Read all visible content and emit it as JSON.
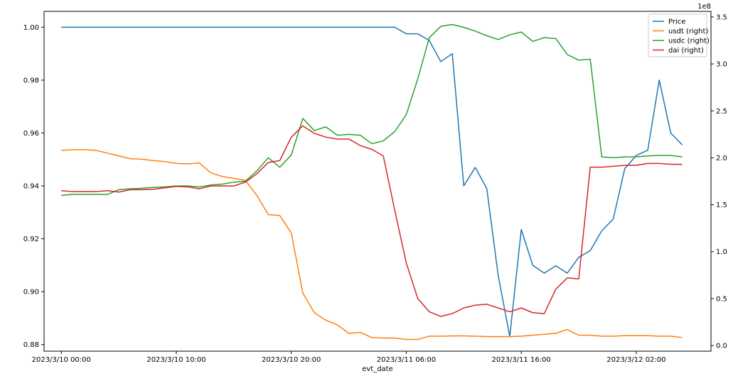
{
  "chart_data": {
    "type": "line",
    "xlabel": "evt_date",
    "x_tick_labels": [
      "2023/3/10 00:00",
      "2023/3/10 10:00",
      "2023/3/10 20:00",
      "2023/3/11 06:00",
      "2023/3/11 16:00",
      "2023/3/12 02:00"
    ],
    "x_tick_values": [
      0,
      10,
      20,
      30,
      40,
      50
    ],
    "xlim": [
      -1.5,
      56.5
    ],
    "left_axis": {
      "ylim": [
        0.8775,
        1.006
      ],
      "tick_values": [
        0.88,
        0.9,
        0.92,
        0.94,
        0.96,
        0.98,
        1.0
      ],
      "tick_labels": [
        "0.88",
        "0.90",
        "0.92",
        "0.94",
        "0.96",
        "0.98",
        "1.00"
      ]
    },
    "right_axis": {
      "ylim": [
        -0.06,
        3.56
      ],
      "offset_label": "1e8",
      "tick_values": [
        0.0,
        0.5,
        1.0,
        1.5,
        2.0,
        2.5,
        3.0,
        3.5
      ],
      "tick_labels": [
        "0.0",
        "0.5",
        "1.0",
        "1.5",
        "2.0",
        "2.5",
        "3.0",
        "3.5"
      ]
    },
    "legend": {
      "position": "top-right",
      "entries": [
        "Price",
        "usdt (right)",
        "usdc (right)",
        "dai (right)"
      ]
    },
    "grid": false,
    "series": [
      {
        "name": "Price",
        "axis": "left",
        "color": "#1f77b4",
        "x": [
          0,
          1,
          2,
          3,
          4,
          5,
          6,
          7,
          8,
          9,
          10,
          11,
          12,
          13,
          14,
          15,
          16,
          17,
          18,
          19,
          20,
          21,
          22,
          23,
          24,
          25,
          26,
          27,
          28,
          29,
          30,
          31,
          32,
          33,
          34,
          35,
          36,
          37,
          38,
          39,
          40,
          41,
          42,
          43,
          44,
          45,
          46,
          47,
          48,
          49,
          50,
          51,
          52,
          53,
          54,
          55
        ],
        "values": [
          1.0,
          1.0,
          1.0,
          1.0,
          1.0,
          1.0,
          1.0,
          1.0,
          1.0,
          1.0,
          1.0,
          1.0,
          1.0,
          1.0,
          1.0,
          1.0,
          1.0,
          1.0,
          1.0,
          1.0,
          1.0,
          1.0,
          1.0,
          1.0,
          1.0,
          1.0,
          1.0,
          1.0,
          1.0,
          1.0,
          0.9975,
          0.9975,
          0.995,
          0.987,
          0.99,
          0.94,
          0.947,
          0.939,
          0.906,
          0.883,
          0.9235,
          0.91,
          0.907,
          0.9098,
          0.907,
          0.913,
          0.9155,
          0.923,
          0.9275,
          0.9465,
          0.9515,
          0.9535,
          0.98,
          0.96,
          0.9555,
          null
        ]
      },
      {
        "name": "usdt (right)",
        "axis": "right",
        "color": "#ff7f0e",
        "x": [
          0,
          1,
          2,
          3,
          4,
          5,
          6,
          7,
          8,
          9,
          10,
          11,
          12,
          13,
          14,
          15,
          16,
          17,
          18,
          19,
          20,
          21,
          22,
          23,
          24,
          25,
          26,
          27,
          28,
          29,
          30,
          31,
          32,
          33,
          34,
          35,
          36,
          37,
          38,
          39,
          40,
          41,
          42,
          43,
          44,
          45,
          46,
          47,
          48,
          49,
          50,
          51,
          52,
          53,
          54,
          55
        ],
        "values": [
          2.08,
          2.085,
          2.085,
          2.08,
          2.05,
          2.02,
          1.99,
          1.985,
          1.97,
          1.96,
          1.94,
          1.935,
          1.945,
          1.84,
          1.8,
          1.78,
          1.76,
          1.6,
          1.395,
          1.385,
          1.2,
          0.56,
          0.35,
          0.27,
          0.22,
          0.13,
          0.14,
          0.085,
          0.08,
          0.08,
          0.065,
          0.065,
          0.1,
          0.1,
          0.102,
          0.102,
          0.1,
          0.095,
          0.095,
          0.095,
          0.1,
          0.11,
          0.12,
          0.13,
          0.17,
          0.11,
          0.11,
          0.1,
          0.1,
          0.105,
          0.105,
          0.105,
          0.1,
          0.1,
          0.085,
          null
        ]
      },
      {
        "name": "usdc (right)",
        "axis": "right",
        "color": "#2ca02c",
        "x": [
          0,
          1,
          2,
          3,
          4,
          5,
          6,
          7,
          8,
          9,
          10,
          11,
          12,
          13,
          14,
          15,
          16,
          17,
          18,
          19,
          20,
          21,
          22,
          23,
          24,
          25,
          26,
          27,
          28,
          29,
          30,
          31,
          32,
          33,
          34,
          35,
          36,
          37,
          38,
          39,
          40,
          41,
          42,
          43,
          44,
          45,
          46,
          47,
          48,
          49,
          50,
          51,
          52,
          53,
          54,
          55
        ],
        "values": [
          1.6,
          1.61,
          1.61,
          1.61,
          1.61,
          1.66,
          1.67,
          1.675,
          1.685,
          1.69,
          1.7,
          1.7,
          1.69,
          1.71,
          1.72,
          1.74,
          1.75,
          1.86,
          2.0,
          1.9,
          2.03,
          2.42,
          2.29,
          2.33,
          2.24,
          2.25,
          2.24,
          2.15,
          2.18,
          2.28,
          2.46,
          2.84,
          3.28,
          3.4,
          3.42,
          3.39,
          3.35,
          3.3,
          3.26,
          3.31,
          3.34,
          3.24,
          3.28,
          3.27,
          3.1,
          3.04,
          3.05,
          2.01,
          2.0,
          2.01,
          2.01,
          2.02,
          2.025,
          2.025,
          2.01,
          null
        ]
      },
      {
        "name": "dai (right)",
        "axis": "right",
        "color": "#d62728",
        "x": [
          0,
          1,
          2,
          3,
          4,
          5,
          6,
          7,
          8,
          9,
          10,
          11,
          12,
          13,
          14,
          15,
          16,
          17,
          18,
          19,
          20,
          21,
          22,
          23,
          24,
          25,
          26,
          27,
          28,
          29,
          30,
          31,
          32,
          33,
          34,
          35,
          36,
          37,
          38,
          39,
          40,
          41,
          42,
          43,
          44,
          45,
          46,
          47,
          48,
          49,
          50,
          51,
          52,
          53,
          54,
          55
        ],
        "values": [
          1.65,
          1.64,
          1.64,
          1.64,
          1.65,
          1.635,
          1.66,
          1.66,
          1.665,
          1.68,
          1.695,
          1.69,
          1.67,
          1.7,
          1.7,
          1.7,
          1.74,
          1.83,
          1.95,
          1.97,
          2.22,
          2.34,
          2.26,
          2.22,
          2.2,
          2.2,
          2.13,
          2.09,
          2.02,
          1.44,
          0.88,
          0.5,
          0.36,
          0.31,
          0.34,
          0.4,
          0.43,
          0.44,
          0.4,
          0.36,
          0.4,
          0.35,
          0.34,
          0.6,
          0.72,
          0.71,
          1.9,
          1.9,
          1.91,
          1.92,
          1.92,
          1.94,
          1.94,
          1.93,
          1.93,
          null
        ]
      }
    ]
  }
}
